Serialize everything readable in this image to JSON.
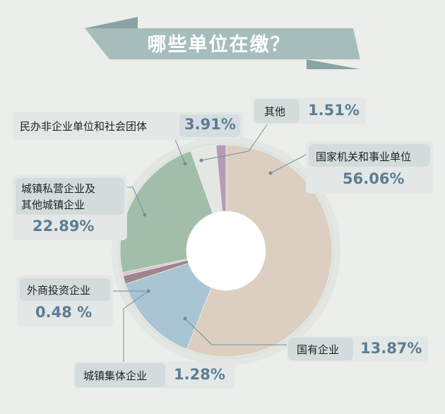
{
  "title": "哪些单位在缴？",
  "chart_data": {
    "type": "pie",
    "style": "donut",
    "slices": [
      {
        "label": "国家机关和事业单位",
        "value": 56.06,
        "display": "56.06%",
        "color": "#dccfc2"
      },
      {
        "label": "国有企业",
        "value": 13.87,
        "display": "13.87%",
        "color": "#a9c4d2"
      },
      {
        "label": "城镇集体企业",
        "value": 1.28,
        "display": "1.28%",
        "color": "#a0848f"
      },
      {
        "label": "外商投资企业",
        "value": 0.48,
        "display": "0.48 %",
        "color": "#d8c6cc"
      },
      {
        "label": "城镇私营企业及其他城镇企业",
        "value": 22.89,
        "display": "22.89%",
        "color": "#a2bea9"
      },
      {
        "label": "民办非企业单位和社会团体",
        "value": 3.91,
        "display": "3.91%",
        "color": "#e5e7e3"
      },
      {
        "label": "其他",
        "value": 1.51,
        "display": "1.51%",
        "color": "#b69bb7"
      }
    ]
  },
  "labels": {
    "national": {
      "line1": "国家机关和事业单位",
      "pct": "56.06%"
    },
    "state_owned": {
      "name": "国有企业",
      "pct": "13.87%"
    },
    "collective": {
      "name": "城镇集体企业",
      "pct": "1.28%"
    },
    "foreign": {
      "name": "外商投资企业",
      "pct": "0.48 %"
    },
    "private": {
      "line1": "城镇私营企业及",
      "line2": "其他城镇企业",
      "pct": "22.89%"
    },
    "nonprofit": {
      "name": "民办非企业单位和社会团体",
      "pct": "3.91%"
    },
    "other": {
      "name": "其他",
      "pct": "1.51%"
    }
  }
}
